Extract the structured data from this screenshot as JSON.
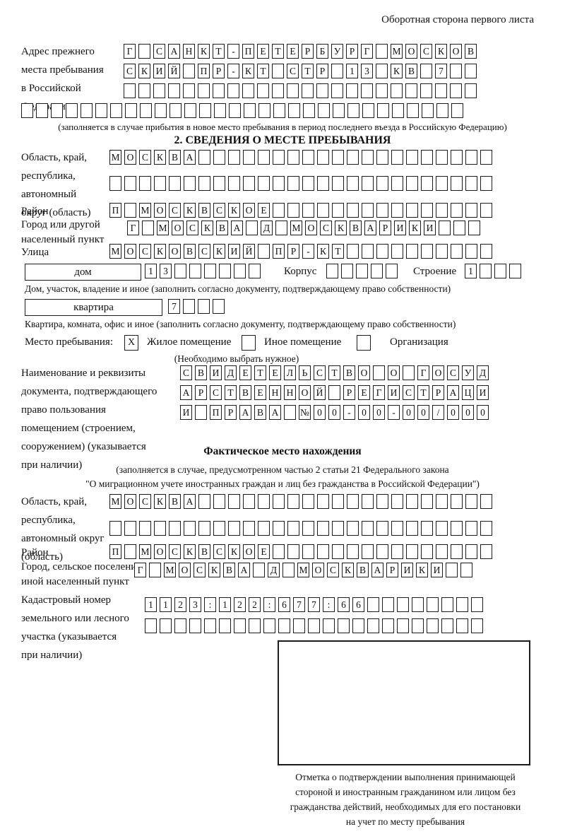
{
  "page": {
    "corner_note": "Оборотная сторона первого листа"
  },
  "prev_address": {
    "label": "Адрес прежнего\nместа пребывания\nв Российской\nФедерации",
    "rows": [
      {
        "t": "Г САНКТ-ПЕТЕРБУРГ МОСКОВ",
        "n": 24
      },
      {
        "t": "СКИЙ ПР-КТ СТР 13 КВ 7",
        "n": 24
      },
      {
        "t": "",
        "n": 24
      },
      {
        "t": "",
        "n": 30
      }
    ],
    "note": "(заполняется в случае прибытия в новое место пребывания в период последнего въезда в Российскую Федерацию)"
  },
  "section2": {
    "title": "2. СВЕДЕНИЯ О МЕСТЕ ПРЕБЫВАНИЯ",
    "region": {
      "label": "Область, край,\nреспублика,\nавтономный\nокруг (область)",
      "rows": [
        {
          "t": "МОСКВА",
          "n": 26
        },
        {
          "t": "",
          "n": 26
        }
      ]
    },
    "district": {
      "label": "Район",
      "row": {
        "t": "П МОСКВСКОЕ",
        "n": 26
      }
    },
    "city": {
      "label": "Город или другой\nнаселенный пункт",
      "row": {
        "t": "Г МОСКВА Д МОСКВАРИКИ",
        "n": 24
      }
    },
    "street": {
      "label": "Улица",
      "row": {
        "t": "МОСКОВСКИЙ ПР-КТ",
        "n": 26
      }
    },
    "house": {
      "box_label": "дом",
      "house_cells": {
        "t": "13",
        "n": 8
      },
      "korpus_label": "Корпус",
      "korpus_cells": {
        "t": "",
        "n": 5
      },
      "stroenie_label": "Строение",
      "stroenie_cells": {
        "t": "1",
        "n": 4
      }
    },
    "house_note": "Дом, участок, владение и иное (заполнить согласно документу, подтверждающему право собственности)",
    "apartment": {
      "box_label": "квартира",
      "cells": {
        "t": "7",
        "n": 4
      }
    },
    "apartment_note": "Квартира, комната, офис и иное (заполнить согласно документу, подтверждающему право собственности)",
    "stay_type": {
      "label": "Место пребывания:",
      "options": [
        {
          "label": "Жилое помещение",
          "mark": "X"
        },
        {
          "label": "Иное помещение",
          "mark": ""
        },
        {
          "label": "Организация",
          "mark": ""
        }
      ],
      "note": "(Необходимо выбрать нужное)"
    },
    "document": {
      "label": "Наименование и реквизиты\nдокумента, подтверждающего\nправо пользования\nпомещением (строением,\nсооружением) (указывается\nпри наличии)",
      "rows": [
        {
          "t": "СВИДЕТЕЛЬСТВО О ГОСУД",
          "n": 21
        },
        {
          "t": "АРСТВЕННОЙ РЕГИСТРАЦИ",
          "n": 21
        },
        {
          "t": "И ПРАВА №00-00-00/000",
          "n": 21
        }
      ]
    }
  },
  "actual_location": {
    "title": "Фактическое место нахождения",
    "note1": "(заполняется в случае, предусмотренном частью 2 статьи 21 Федерального закона",
    "note2": "\"О миграционном учете иностранных граждан и лиц без гражданства в Российской Федерации\")",
    "region": {
      "label": "Область, край,\nреспублика,\nавтономный округ\n(область)",
      "rows": [
        {
          "t": "МОСКВА",
          "n": 26
        },
        {
          "t": "",
          "n": 26
        }
      ]
    },
    "district": {
      "label": "Район",
      "row": {
        "t": "П МОСКВСКОЕ",
        "n": 26
      }
    },
    "city": {
      "label": "Город, сельское поселение,\nиной населенный пункт",
      "row": {
        "t": "Г МОСКВА Д МОСКВАРИКИ",
        "n": 23
      }
    },
    "cadastral": {
      "label": "Кадастровый номер\nземельного или лесного\nучастка (указывается\nпри наличии)",
      "rows": [
        {
          "t": "1123:122:677:66",
          "n": 23
        },
        {
          "t": "",
          "n": 23
        }
      ]
    },
    "stamp_caption": "Отметка о подтверждении выполнения принимающей\nстороной и иностранным гражданином или лицом без\nгражданства действий, необходимых для его постановки\nна учет по месту пребывания"
  }
}
